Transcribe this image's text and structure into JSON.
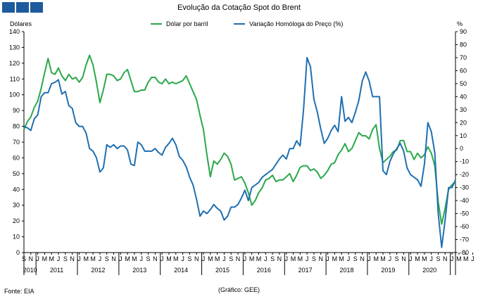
{
  "chart_data": {
    "type": "line",
    "title": "Evolução da Cotação Spot do Brent",
    "ylabel_left": "Dólares",
    "ylabel_right": "%",
    "ylim_left": [
      0,
      140
    ],
    "ylim_right": [
      -80,
      90
    ],
    "yticks_left": [
      0,
      10,
      20,
      30,
      40,
      50,
      60,
      70,
      80,
      90,
      100,
      110,
      120,
      130,
      140
    ],
    "yticks_right": [
      -80,
      -70,
      -60,
      -50,
      -40,
      -30,
      -20,
      -10,
      0,
      10,
      20,
      30,
      40,
      50,
      60,
      70,
      80,
      90
    ],
    "month_labels": [
      "S",
      "N",
      "J",
      "M",
      "M",
      "J",
      "S",
      "N",
      "J",
      "M",
      "M",
      "J",
      "S",
      "N",
      "J",
      "M",
      "M",
      "J",
      "S",
      "N",
      "J",
      "M",
      "M",
      "J",
      "S",
      "N",
      "J",
      "M",
      "M",
      "J",
      "S",
      "N",
      "J",
      "M",
      "M",
      "J",
      "S",
      "N",
      "J",
      "M",
      "M",
      "J",
      "S",
      "N",
      "J",
      "M",
      "M",
      "J",
      "S",
      "N",
      "J",
      "M",
      "M",
      "J",
      "S",
      "N",
      "J",
      "M",
      "M",
      "J",
      "S",
      "N",
      "J",
      "M",
      "M",
      "J"
    ],
    "year_labels": [
      "2010",
      "2011",
      "2012",
      "2013",
      "2014",
      "2015",
      "2016",
      "2017",
      "2018",
      "2019",
      "2020"
    ],
    "legend_position": "top",
    "gridlines": false,
    "series": [
      {
        "name": "Dólar por barril",
        "axis": "left",
        "color": "#2aa84a",
        "values": [
          78,
          83,
          86,
          92,
          96,
          104,
          114,
          123,
          114,
          113,
          117,
          112,
          109,
          113,
          110,
          111,
          108,
          111,
          119,
          125,
          119,
          108,
          95,
          103,
          113,
          113,
          112,
          109,
          110,
          114,
          116,
          109,
          102,
          102,
          103,
          103,
          108,
          111,
          111,
          108,
          107,
          110,
          107,
          108,
          107,
          108,
          109,
          112,
          107,
          102,
          97,
          87,
          78,
          62,
          48,
          58,
          56,
          59,
          63,
          61,
          56,
          46,
          47,
          48,
          44,
          38,
          30,
          33,
          38,
          41,
          46,
          47,
          49,
          45,
          46,
          46,
          48,
          50,
          45,
          49,
          54,
          55,
          55,
          52,
          53,
          51,
          47,
          49,
          52,
          56,
          57,
          62,
          65,
          69,
          64,
          66,
          71,
          76,
          74,
          74,
          72,
          78,
          81,
          66,
          57,
          59,
          61,
          64,
          65,
          71,
          71,
          64,
          64,
          59,
          63,
          60,
          62,
          67,
          63,
          55,
          32,
          18,
          28,
          40,
          43,
          45
        ]
      },
      {
        "name": "Variação Homóloga do Preço (%)",
        "axis": "right",
        "color": "#1f6fb2",
        "values": [
          17,
          16,
          14,
          23,
          26,
          40,
          43,
          43,
          50,
          51,
          53,
          42,
          44,
          33,
          31,
          20,
          17,
          17,
          12,
          0,
          -2,
          -7,
          -18,
          -15,
          3,
          1,
          3,
          0,
          2,
          2,
          -1,
          -12,
          -13,
          5,
          3,
          -2,
          -2,
          -2,
          0,
          -3,
          -5,
          1,
          4,
          8,
          3,
          -6,
          -9,
          -14,
          -22,
          -28,
          -39,
          -52,
          -48,
          -50,
          -47,
          -43,
          -46,
          -48,
          -55,
          -52,
          -45,
          -45,
          -43,
          -38,
          -32,
          -40,
          -30,
          -28,
          -26,
          -22,
          -20,
          -18,
          -16,
          -12,
          -8,
          -5,
          -8,
          0,
          0,
          6,
          2,
          30,
          70,
          63,
          38,
          28,
          15,
          4,
          8,
          14,
          18,
          13,
          40,
          21,
          24,
          20,
          28,
          37,
          52,
          59,
          52,
          40,
          40,
          40,
          -17,
          -20,
          -10,
          -4,
          0,
          4,
          -2,
          -15,
          -20,
          -22,
          -24,
          -29,
          -12,
          20,
          13,
          -3,
          -50,
          -76,
          -55,
          -30,
          -30,
          -24
        ]
      }
    ]
  },
  "footer": {
    "source": "Fonte: EIA",
    "credit": "(Gráfico: GEE)"
  },
  "header": {
    "logo_color": "#1f5a9c"
  }
}
